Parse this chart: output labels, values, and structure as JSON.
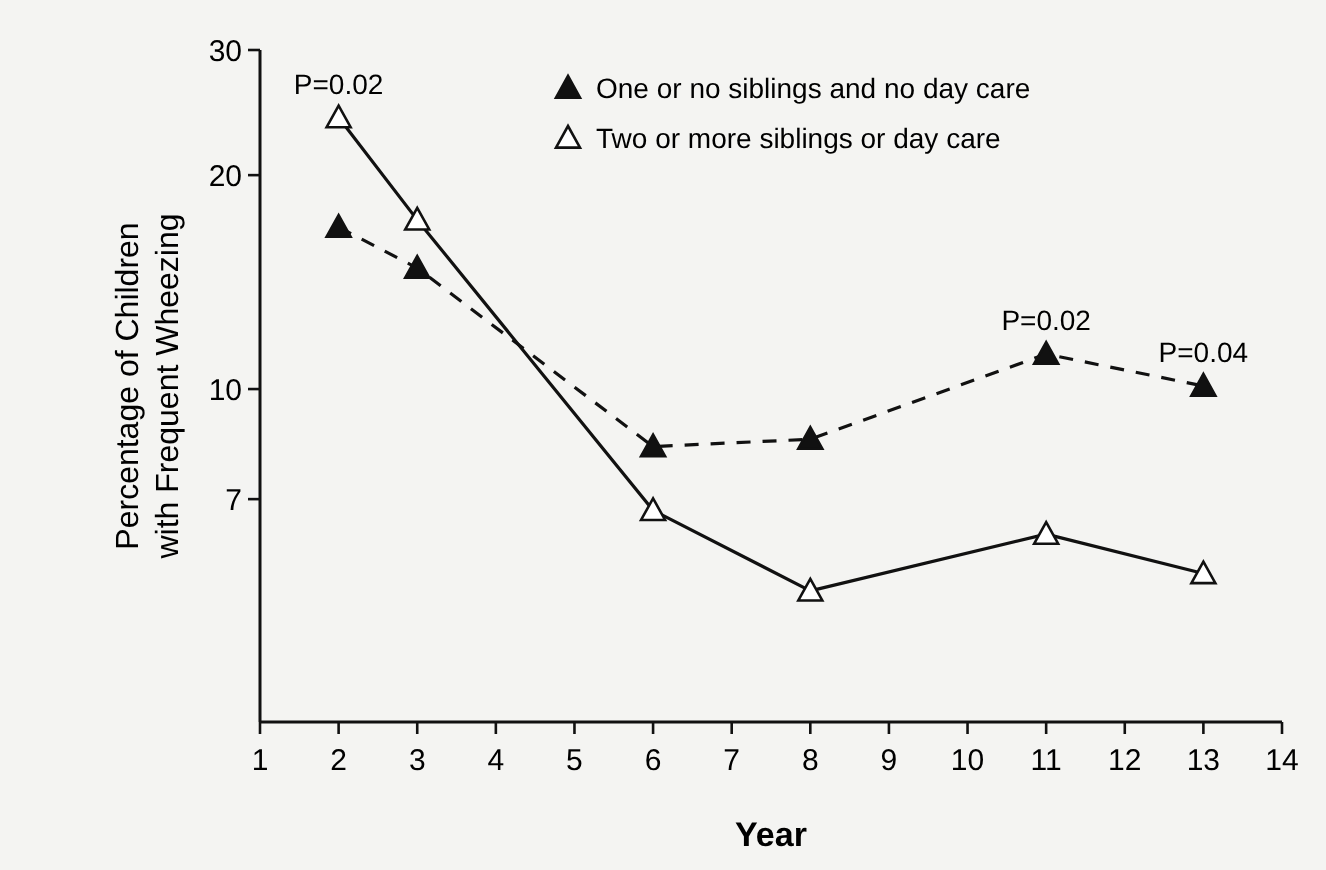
{
  "chart_data": {
    "type": "line",
    "xlabel": "Year",
    "ylabel": "Percentage of Children with Frequent Wheezing",
    "x": [
      2,
      3,
      6,
      8,
      11,
      13
    ],
    "xlim": [
      1,
      14
    ],
    "xticks": [
      1,
      2,
      3,
      4,
      5,
      6,
      7,
      8,
      9,
      10,
      11,
      12,
      13,
      14
    ],
    "ylim": [
      3.4,
      30
    ],
    "yticks": [
      7,
      10,
      20,
      30
    ],
    "log": "y",
    "marker": "triangle",
    "legend": "top right",
    "grid": false,
    "series": [
      {
        "name": "One or no siblings and no day care",
        "color": "#111111",
        "line_style": "dashed",
        "values": [
          16.9,
          14.8,
          8.3,
          8.5,
          11.2,
          10.1
        ]
      },
      {
        "name": "Two or more siblings or day care",
        "color": "#111111",
        "line_style": "solid",
        "values": [
          24.1,
          17.3,
          6.75,
          5.2,
          6.25,
          5.5
        ]
      }
    ],
    "annotations": [
      {
        "text": "P=0.02",
        "x": 2,
        "y": 24.1
      },
      {
        "text": "P=0.02",
        "x": 11,
        "y": 11.2
      },
      {
        "text": "P=0.04",
        "x": 13,
        "y": 10.1
      }
    ]
  }
}
